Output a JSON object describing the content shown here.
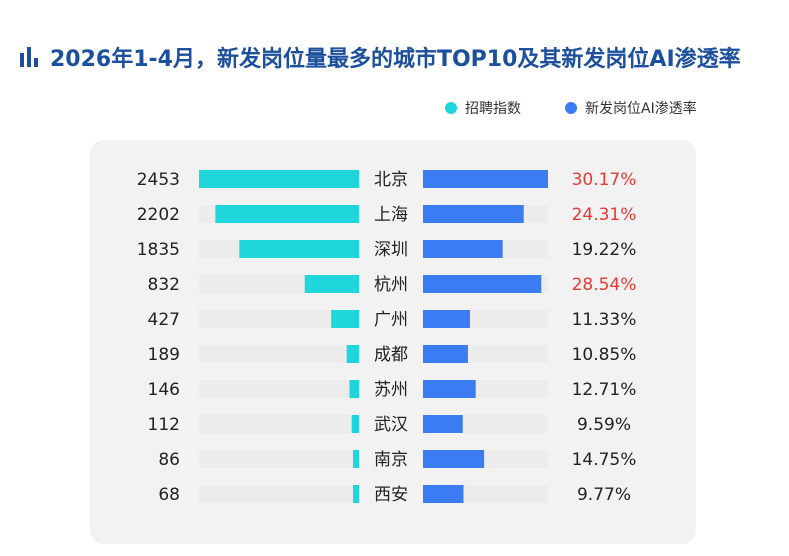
{
  "title": "2026年1-4月，新发岗位量最多的城市TOP10及其新发岗位AI渗透率",
  "icons": {
    "title": "bar-chart-icon"
  },
  "colors": {
    "title": "#1c4f9c",
    "recruit": "#1fd6dc",
    "ai": "#3b7cf2",
    "highlight": "#e53935",
    "text": "#222222",
    "track": "#ececec"
  },
  "legend": [
    {
      "label": "招聘指数",
      "color": "#1fd6dc"
    },
    {
      "label": "新发岗位AI渗透率",
      "color": "#3b7cf2"
    }
  ],
  "chart_data": {
    "type": "bar",
    "categories": [
      "北京",
      "上海",
      "深圳",
      "杭州",
      "广州",
      "成都",
      "苏州",
      "武汉",
      "南京",
      "西安"
    ],
    "series": [
      {
        "name": "招聘指数",
        "values": [
          2453,
          2202,
          1835,
          832,
          427,
          189,
          146,
          112,
          86,
          68
        ],
        "labels": [
          "2453",
          "2202",
          "1835",
          "832",
          "427",
          "189",
          "146",
          "112",
          "86",
          "68"
        ]
      },
      {
        "name": "新发岗位AI渗透率",
        "values": [
          30.17,
          24.31,
          19.22,
          28.54,
          11.33,
          10.85,
          12.71,
          9.59,
          14.75,
          9.77
        ],
        "labels": [
          "30.17%",
          "24.31%",
          "19.22%",
          "28.54%",
          "11.33%",
          "10.85%",
          "12.71%",
          "9.59%",
          "14.75%",
          "9.77%"
        ]
      }
    ],
    "highlighted": [
      "北京",
      "上海",
      "杭州"
    ],
    "xlim_recruit": [
      0,
      2453
    ],
    "xlim_ai": [
      0,
      30.17
    ],
    "legend_position": "top-right",
    "grid": false
  }
}
